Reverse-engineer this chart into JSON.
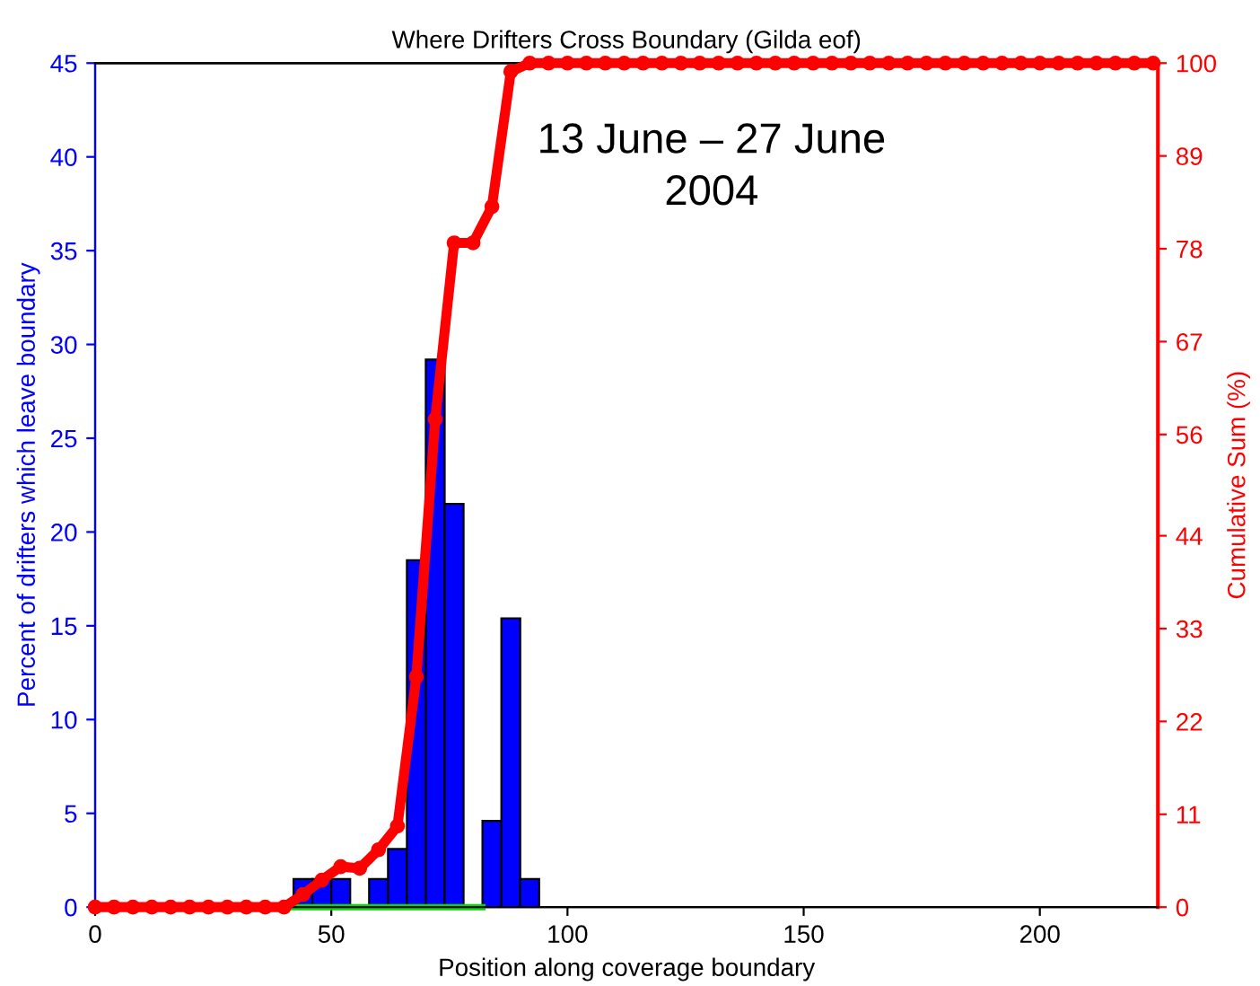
{
  "chart_data": {
    "type": "histogram",
    "title": "Where Drifters Cross Boundary (Gilda eof)",
    "xlabel": "Position along coverage boundary",
    "ylabel": "Percent of drifters which leave boundary",
    "y2label": "Cumulative Sum (%)",
    "annotations": [
      "13 June – 27 June\n2004"
    ],
    "xlim": [
      0,
      225
    ],
    "xticks": [
      0,
      50,
      100,
      150,
      200
    ],
    "ylim": [
      0,
      45
    ],
    "yticks": [
      0,
      5,
      10,
      15,
      20,
      25,
      30,
      35,
      40,
      45
    ],
    "y2lim": [
      0,
      100
    ],
    "y2ticks": [
      0,
      11,
      22,
      33,
      44,
      56,
      67,
      78,
      89,
      100
    ],
    "grid": false,
    "legend": false,
    "series": [
      {
        "color": "#0000ff",
        "bins": [
          42,
          46,
          50,
          54,
          58,
          62,
          66,
          70,
          74,
          78,
          82,
          86,
          90,
          94
        ],
        "values": [
          1.5,
          1.5,
          1.5,
          0,
          1.5,
          3.1,
          18.5,
          29.2,
          21.5,
          0,
          4.6,
          15.4,
          1.5
        ]
      },
      {
        "type": "line",
        "color": "#00dd00",
        "x": [
          0,
          82
        ],
        "values": [
          0,
          0
        ]
      },
      {
        "type": "line",
        "axis": "y2",
        "color": "#ff0000",
        "marker": "circle",
        "x": [
          0,
          4,
          8,
          12,
          16,
          20,
          24,
          28,
          32,
          36,
          40,
          44,
          48,
          52,
          56,
          60,
          64,
          68,
          72,
          76,
          80,
          84,
          88,
          92,
          96,
          100,
          104,
          108,
          112,
          116,
          120,
          124,
          128,
          132,
          136,
          140,
          144,
          148,
          152,
          156,
          160,
          164,
          168,
          172,
          176,
          180,
          184,
          188,
          192,
          196,
          200,
          204,
          208,
          212,
          216,
          220,
          224
        ],
        "values": [
          0,
          0,
          0,
          0,
          0,
          0,
          0,
          0,
          0,
          0,
          0,
          1.5,
          3.2,
          4.8,
          4.6,
          6.8,
          9.6,
          27.3,
          57.8,
          78.7,
          78.7,
          83,
          99,
          100,
          100,
          100,
          100,
          100,
          100,
          100,
          100,
          100,
          100,
          100,
          100,
          100,
          100,
          100,
          100,
          100,
          100,
          100,
          100,
          100,
          100,
          100,
          100,
          100,
          100,
          100,
          100,
          100,
          100,
          100,
          100,
          100,
          100
        ]
      }
    ]
  }
}
